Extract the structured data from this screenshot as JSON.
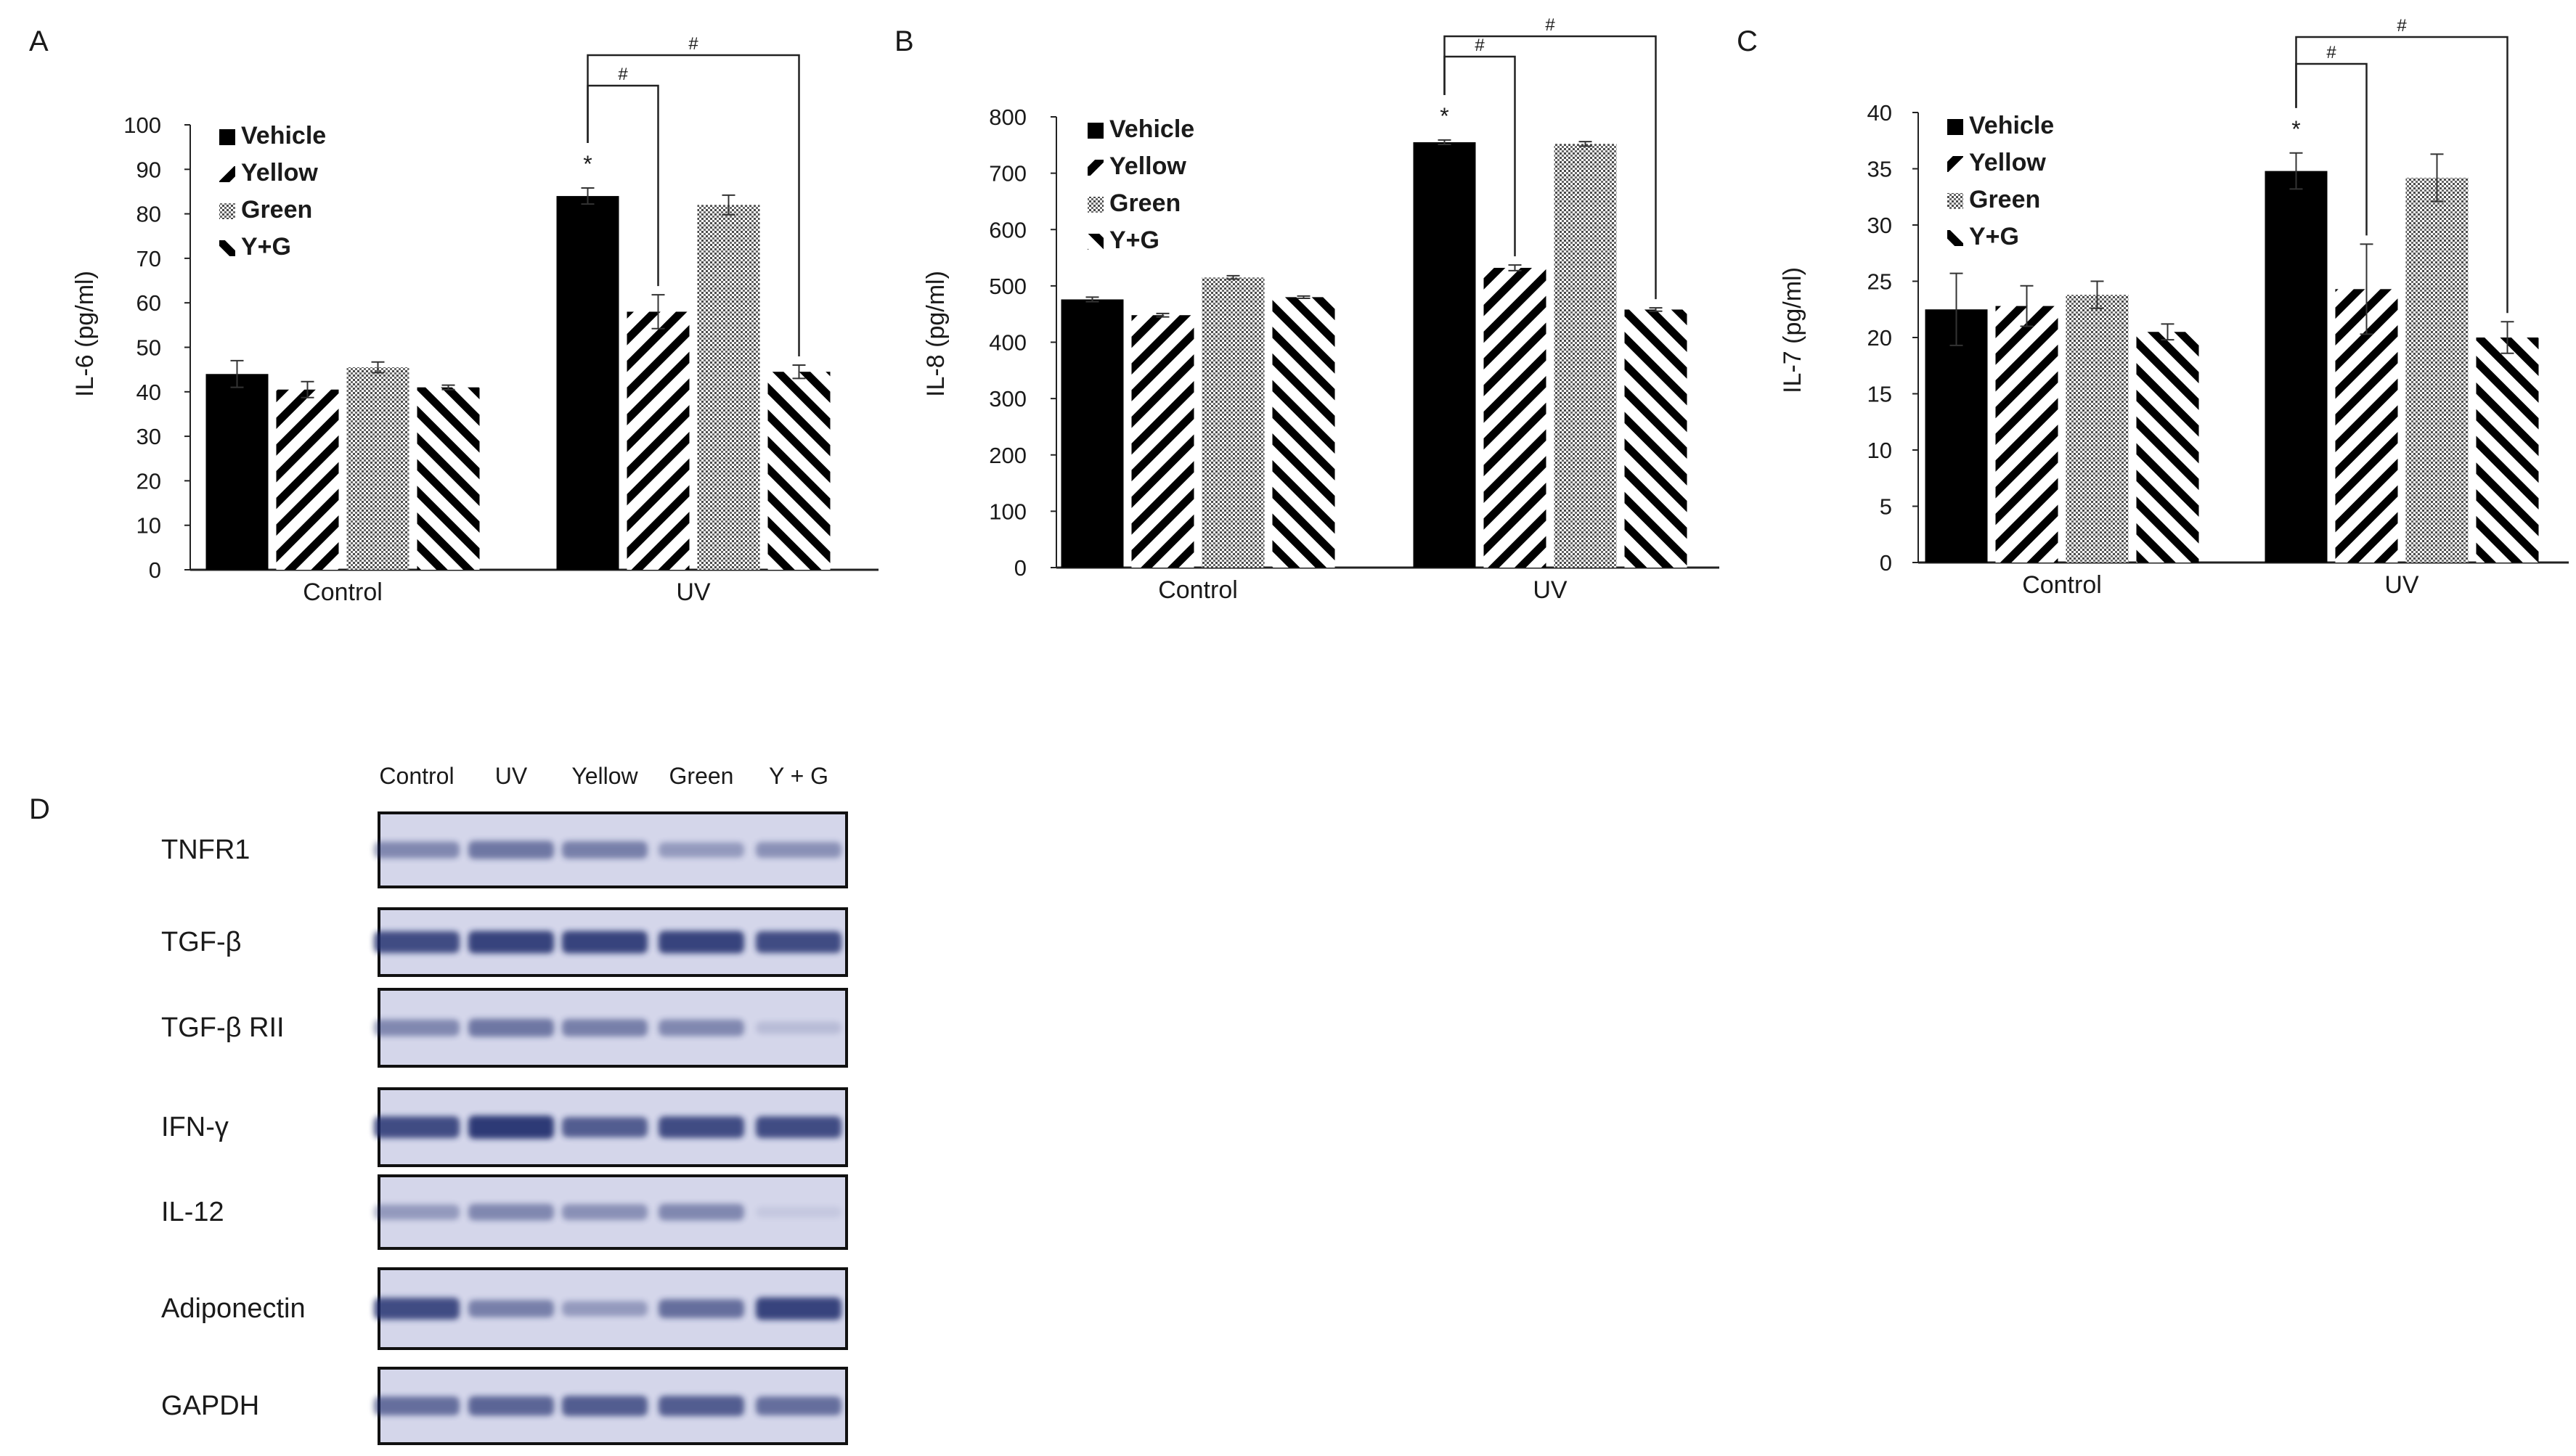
{
  "chart_data": [
    {
      "type": "bar",
      "panel_label": "A",
      "ylabel": "IL-6 (pg/ml)",
      "xlabel": "",
      "ylim": [
        0,
        100
      ],
      "yticks": [
        "0",
        "10",
        "20",
        "30",
        "40",
        "50",
        "60",
        "70",
        "80",
        "90",
        "100"
      ],
      "categories": [
        "Control",
        "UV"
      ],
      "series": [
        {
          "name": "Vehicle",
          "pattern": "solid",
          "values": [
            44,
            84
          ],
          "errors": [
            3,
            1.8
          ]
        },
        {
          "name": "Yellow",
          "pattern": "diag-right",
          "values": [
            40.5,
            58
          ],
          "errors": [
            1.8,
            3.8
          ]
        },
        {
          "name": "Green",
          "pattern": "dots",
          "values": [
            45.5,
            82
          ],
          "errors": [
            1.2,
            2.2
          ]
        },
        {
          "name": "Y+G",
          "pattern": "diag-left",
          "values": [
            41,
            44.5
          ],
          "errors": [
            0.5,
            1.5
          ]
        }
      ],
      "annotations": {
        "star": "*",
        "brackets": [
          {
            "label": "#",
            "target": "Yellow"
          },
          {
            "label": "#",
            "target": "Y+G"
          }
        ]
      }
    },
    {
      "type": "bar",
      "panel_label": "B",
      "ylabel": "IL-8 (pg/ml)",
      "xlabel": "",
      "ylim": [
        0,
        800
      ],
      "yticks": [
        "0",
        "100",
        "200",
        "300",
        "400",
        "500",
        "600",
        "700",
        "800"
      ],
      "categories": [
        "Control",
        "UV"
      ],
      "series": [
        {
          "name": "Vehicle",
          "pattern": "solid",
          "values": [
            476,
            755
          ],
          "errors": [
            4,
            4
          ]
        },
        {
          "name": "Yellow",
          "pattern": "diag-right",
          "values": [
            448,
            532
          ],
          "errors": [
            3,
            5
          ]
        },
        {
          "name": "Green",
          "pattern": "dots",
          "values": [
            515,
            752
          ],
          "errors": [
            3,
            4
          ]
        },
        {
          "name": "Y+G",
          "pattern": "diag-left",
          "values": [
            480,
            458
          ],
          "errors": [
            2,
            3
          ]
        }
      ],
      "annotations": {
        "star": "*",
        "brackets": [
          {
            "label": "#",
            "target": "Yellow"
          },
          {
            "label": "#",
            "target": "Y+G"
          }
        ]
      }
    },
    {
      "type": "bar",
      "panel_label": "C",
      "ylabel": "IL-7 (pg/ml)",
      "xlabel": "",
      "ylim": [
        0,
        40
      ],
      "yticks": [
        "0",
        "5",
        "10",
        "15",
        "20",
        "25",
        "30",
        "35",
        "40"
      ],
      "categories": [
        "Control",
        "UV"
      ],
      "series": [
        {
          "name": "Vehicle",
          "pattern": "solid",
          "values": [
            22.5,
            34.8
          ],
          "errors": [
            3.2,
            1.6
          ]
        },
        {
          "name": "Yellow",
          "pattern": "diag-right",
          "values": [
            22.8,
            24.3
          ],
          "errors": [
            1.8,
            4
          ]
        },
        {
          "name": "Green",
          "pattern": "dots",
          "values": [
            23.8,
            34.2
          ],
          "errors": [
            1.2,
            2.1
          ]
        },
        {
          "name": "Y+G",
          "pattern": "diag-left",
          "values": [
            20.5,
            20
          ],
          "errors": [
            0.7,
            1.4
          ]
        }
      ],
      "annotations": {
        "star": "*",
        "brackets": [
          {
            "label": "#",
            "target": "Yellow"
          },
          {
            "label": "#",
            "target": "Y+G"
          }
        ]
      }
    }
  ],
  "blot": {
    "panel_label": "D",
    "lanes": [
      "Control",
      "UV",
      "Yellow",
      "Green",
      "Y + G"
    ],
    "rows": [
      {
        "label": "TNFR1",
        "intensities": [
          0.45,
          0.55,
          0.5,
          0.35,
          0.4
        ]
      },
      {
        "label": "TGF-β",
        "intensities": [
          0.8,
          0.85,
          0.85,
          0.85,
          0.8
        ]
      },
      {
        "label": "TGF-β RII",
        "intensities": [
          0.45,
          0.55,
          0.5,
          0.45,
          0.15
        ]
      },
      {
        "label": "IFN-γ",
        "intensities": [
          0.8,
          0.9,
          0.7,
          0.8,
          0.8
        ]
      },
      {
        "label": "IL-12",
        "intensities": [
          0.35,
          0.45,
          0.4,
          0.45,
          0.08
        ]
      },
      {
        "label": "Adiponectin",
        "intensities": [
          0.8,
          0.5,
          0.35,
          0.6,
          0.85
        ]
      },
      {
        "label": "GAPDH",
        "intensities": [
          0.6,
          0.65,
          0.7,
          0.7,
          0.6
        ]
      }
    ]
  },
  "colors": {
    "bar": "#000000",
    "blot_band": "#1f2a6b",
    "blot_bg": "#d4d6ea",
    "text": "#1a1a1a"
  }
}
